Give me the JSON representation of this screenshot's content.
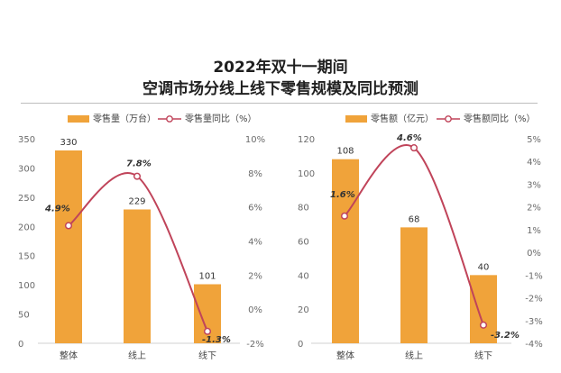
{
  "header": {
    "title_line1": "2022年双十一期间",
    "title_line2": "空调市场分线上线下零售规模及同比预测"
  },
  "colors": {
    "bar": "#F0A33A",
    "line": "#C0445A",
    "marker_fill": "#ffffff",
    "axis_text": "#6b6b6b"
  },
  "chart_data": [
    {
      "type": "bar",
      "categories": [
        "整体",
        "线上",
        "线下"
      ],
      "series": [
        {
          "name": "零售量（万台）",
          "kind": "bar",
          "axis": "left",
          "values": [
            330,
            229,
            101
          ]
        },
        {
          "name": "零售量同比（%）",
          "kind": "line",
          "axis": "right",
          "values": [
            4.9,
            7.8,
            -1.3
          ],
          "labels": [
            "4.9%",
            "7.8%",
            "-1.3%"
          ]
        }
      ],
      "left_axis": {
        "min": 0,
        "max": 350,
        "ticks": [
          0,
          50,
          100,
          150,
          200,
          250,
          300,
          350
        ],
        "tick_labels": [
          "0",
          "50",
          "100",
          "150",
          "200",
          "250",
          "300",
          "350"
        ]
      },
      "right_axis": {
        "min": -2,
        "max": 10,
        "ticks": [
          -2,
          0,
          2,
          4,
          6,
          8,
          10
        ],
        "tick_labels": [
          "-2%",
          "0%",
          "2%",
          "4%",
          "6%",
          "8%",
          "10%"
        ]
      },
      "bar_labels": [
        "330",
        "229",
        "101"
      ],
      "legend_position": "top"
    },
    {
      "type": "bar",
      "categories": [
        "整体",
        "线上",
        "线下"
      ],
      "series": [
        {
          "name": "零售额（亿元）",
          "kind": "bar",
          "axis": "left",
          "values": [
            108,
            68,
            40
          ]
        },
        {
          "name": "零售额同比（%）",
          "kind": "line",
          "axis": "right",
          "values": [
            1.6,
            4.6,
            -3.2
          ],
          "labels": [
            "1.6%",
            "4.6%",
            "-3.2%"
          ]
        }
      ],
      "left_axis": {
        "min": 0,
        "max": 120,
        "ticks": [
          0,
          20,
          40,
          60,
          80,
          100,
          120
        ],
        "tick_labels": [
          "0",
          "20",
          "40",
          "60",
          "80",
          "100",
          "120"
        ]
      },
      "right_axis": {
        "min": -4,
        "max": 5,
        "ticks": [
          -4,
          -3,
          -2,
          -1,
          0,
          1,
          2,
          3,
          4,
          5
        ],
        "tick_labels": [
          "-4%",
          "-3%",
          "-2%",
          "-1%",
          "0%",
          "1%",
          "2%",
          "3%",
          "4%",
          "5%"
        ]
      },
      "bar_labels": [
        "108",
        "68",
        "40"
      ],
      "legend_position": "top"
    }
  ]
}
